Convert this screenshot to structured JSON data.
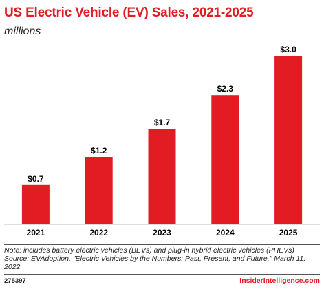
{
  "colors": {
    "bar": "#e31c24",
    "title": "#e31c24",
    "axis": "#bbbbbb"
  },
  "chart_data": {
    "type": "bar",
    "title": "US Electric Vehicle (EV) Sales, 2021-2025",
    "subtitle": "millions",
    "categories": [
      "2021",
      "2022",
      "2023",
      "2024",
      "2025"
    ],
    "values": [
      0.7,
      1.2,
      1.7,
      2.3,
      3.0
    ],
    "value_labels": [
      "$0.7",
      "$1.2",
      "$1.7",
      "$2.3",
      "$3.0"
    ],
    "ylim": [
      0,
      3.0
    ],
    "grid": false,
    "legend": "none"
  },
  "footer": {
    "note": "Note: includes battery electric vehicles (BEVs) and plug-in hybrid electric vehicles (PHEVs)",
    "source": "Source: EVAdoption, \"Electric Vehicles by the Numbers: Past, Present, and Future,\" March 11, 2022",
    "chart_id": "275397",
    "brand": "InsiderIntelligence.com"
  }
}
